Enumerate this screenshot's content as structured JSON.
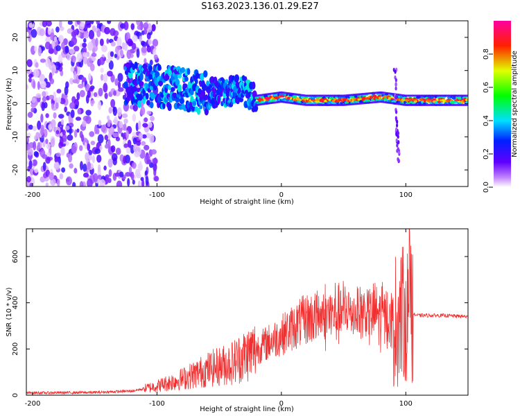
{
  "title": "S163.2023.136.01.29.E27",
  "colors": {
    "snr_line": "#f03030",
    "axis": "#000000"
  },
  "chart_data": [
    {
      "type": "heatmap",
      "name": "spectrogram",
      "xlabel": "Height of straight line (km)",
      "ylabel": "Frequency (Hz)",
      "xlim": [
        -205,
        150
      ],
      "ylim": [
        -25,
        25
      ],
      "xticks": [
        "-200",
        "-100",
        "0",
        "100"
      ],
      "xtick_values": [
        -200,
        -100,
        0,
        100
      ],
      "yticks": [
        "20",
        "10",
        "0",
        "-10",
        "-20"
      ],
      "ytick_values": [
        20,
        10,
        0,
        -10,
        -20
      ],
      "colorbar": {
        "label": "Normalized spectral amplitude",
        "range": [
          0,
          1
        ],
        "ticks": [
          "0.0",
          "0.2",
          "0.4",
          "0.6",
          "0.8"
        ],
        "tick_values": [
          0,
          0.2,
          0.4,
          0.6,
          0.8
        ],
        "colormap": "rainbow (white-purple-blue-cyan-green-yellow-red-magenta)"
      },
      "features": {
        "noise_region_x": [
          -205,
          -110
        ],
        "band_center_hz": [
          {
            "x": -120,
            "y": 6
          },
          {
            "x": -90,
            "y": 5
          },
          {
            "x": -60,
            "y": 3
          },
          {
            "x": -30,
            "y": 4
          },
          {
            "x": -20,
            "y": 1
          },
          {
            "x": 0,
            "y": 2
          },
          {
            "x": 20,
            "y": 1
          },
          {
            "x": 50,
            "y": 1
          },
          {
            "x": 80,
            "y": 2
          },
          {
            "x": 100,
            "y": 1
          },
          {
            "x": 150,
            "y": 1
          }
        ],
        "vertical_streak_x": 92
      }
    },
    {
      "type": "line",
      "name": "snr",
      "xlabel": "Height of straight line (km)",
      "ylabel": "SNR (10 * v/v)",
      "xlim": [
        -205,
        150
      ],
      "ylim": [
        0,
        720
      ],
      "xticks": [
        "-200",
        "-100",
        "0",
        "100"
      ],
      "xtick_values": [
        -200,
        -100,
        0,
        100
      ],
      "yticks": [
        "0",
        "200",
        "400",
        "600"
      ],
      "ytick_values": [
        0,
        200,
        400,
        600
      ],
      "series": [
        {
          "envelope": [
            {
              "x": -205,
              "y": 10
            },
            {
              "x": -150,
              "y": 12
            },
            {
              "x": -120,
              "y": 18
            },
            {
              "x": -100,
              "y": 40
            },
            {
              "x": -80,
              "y": 70
            },
            {
              "x": -60,
              "y": 110
            },
            {
              "x": -40,
              "y": 140
            },
            {
              "x": -20,
              "y": 200
            },
            {
              "x": 0,
              "y": 260
            },
            {
              "x": 20,
              "y": 330
            },
            {
              "x": 40,
              "y": 350
            },
            {
              "x": 60,
              "y": 360
            },
            {
              "x": 80,
              "y": 350
            },
            {
              "x": 90,
              "y": 320
            },
            {
              "x": 100,
              "y": 360
            },
            {
              "x": 110,
              "y": 345
            },
            {
              "x": 130,
              "y": 345
            },
            {
              "x": 150,
              "y": 340
            }
          ],
          "peak_y": 720,
          "peak_x": 102
        }
      ]
    }
  ]
}
